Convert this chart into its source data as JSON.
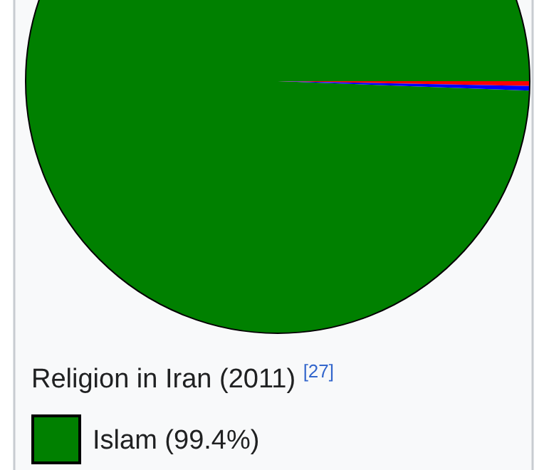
{
  "chart_data": {
    "type": "pie",
    "title": "Religion in Iran (2011) $^{[27]}$",
    "categories": [
      "Islam (99.4%)",
      null,
      null
    ],
    "values": [
      99.4,
      0.3,
      0.3
    ],
    "colors": [
      "#008000",
      "#ff0000",
      "#0000ff"
    ],
    "legend": "bottom"
  }
}
